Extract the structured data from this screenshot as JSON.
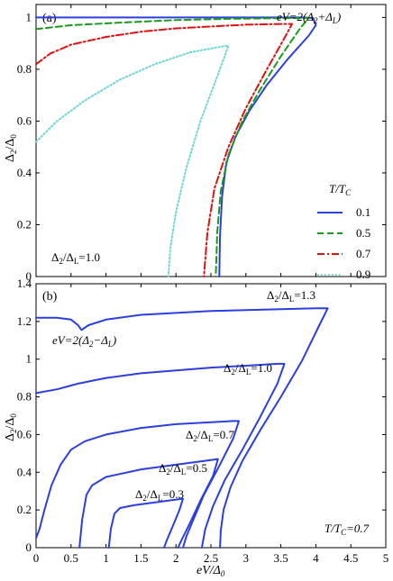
{
  "chart_data": [
    {
      "type": "line",
      "panel_label": "(a)",
      "xlim": [
        0,
        5
      ],
      "ylim": [
        0,
        1.05
      ],
      "yticks": [
        0,
        0.2,
        0.4,
        0.6,
        0.8,
        1
      ],
      "ytick_labels": [
        "0",
        "0.2",
        "0.4",
        "0.6",
        "0.8",
        "1"
      ],
      "ylabel": {
        "main": "Δ",
        "sub1": "2",
        "mid": "/Δ",
        "sub2": "0"
      },
      "legend": {
        "title": {
          "main": "T/T",
          "sub": "C"
        },
        "placement": "right",
        "entries": [
          "0.1",
          "0.5",
          "0.7",
          "0.9"
        ]
      },
      "annotations": {
        "top_right": "eV=2(Δ₂+Δₗ)",
        "bottom_left": "Δ₂/Δₗ=1.0"
      },
      "series": [
        {
          "name": "0.1",
          "color": "#2b3fe0",
          "style": "solid",
          "x": [
            0.0,
            1.0,
            2.0,
            3.0,
            3.8,
            3.96,
            4.0,
            3.9,
            3.6,
            3.3,
            3.05,
            2.85,
            2.72,
            2.66,
            2.63,
            2.62
          ],
          "y": [
            1.0,
            1.0,
            1.0,
            1.0,
            1.0,
            0.998,
            0.97,
            0.93,
            0.84,
            0.74,
            0.64,
            0.54,
            0.44,
            0.31,
            0.16,
            0.0
          ]
        },
        {
          "name": "0.5",
          "color": "#1a9a1a",
          "style": "dashed",
          "x": [
            0.0,
            0.5,
            1.2,
            2.0,
            2.8,
            3.5,
            3.9,
            3.78,
            3.5,
            3.2,
            2.95,
            2.75,
            2.64,
            2.59,
            2.57
          ],
          "y": [
            0.955,
            0.97,
            0.98,
            0.99,
            0.995,
            0.997,
            0.998,
            0.96,
            0.85,
            0.72,
            0.6,
            0.47,
            0.33,
            0.17,
            0.0
          ]
        },
        {
          "name": "0.7",
          "color": "#e01010",
          "style": "dashdot",
          "x": [
            0.0,
            0.2,
            0.5,
            1.0,
            1.5,
            2.0,
            2.5,
            3.0,
            3.5,
            3.66,
            3.55,
            3.3,
            3.0,
            2.75,
            2.55,
            2.45,
            2.4
          ],
          "y": [
            0.82,
            0.86,
            0.895,
            0.925,
            0.945,
            0.958,
            0.965,
            0.972,
            0.975,
            0.975,
            0.92,
            0.8,
            0.65,
            0.5,
            0.34,
            0.17,
            0.0
          ]
        },
        {
          "name": "0.9",
          "color": "#6fd6d2",
          "style": "dotted",
          "x": [
            0.0,
            0.3,
            0.7,
            1.2,
            1.7,
            2.2,
            2.7,
            2.75,
            2.6,
            2.35,
            2.15,
            2.0,
            1.92,
            1.89
          ],
          "y": [
            0.52,
            0.6,
            0.68,
            0.76,
            0.82,
            0.865,
            0.89,
            0.89,
            0.78,
            0.6,
            0.42,
            0.25,
            0.11,
            0.0
          ]
        }
      ]
    },
    {
      "type": "line",
      "panel_label": "(b)",
      "xlim": [
        0,
        5
      ],
      "ylim": [
        0,
        1.4
      ],
      "xticks": [
        0,
        0.5,
        1,
        1.5,
        2,
        2.5,
        3,
        3.5,
        4,
        4.5,
        5
      ],
      "xtick_labels": [
        "0",
        "0.5",
        "1",
        "1.5",
        "2",
        "2.5",
        "3",
        "3.5",
        "4",
        "4.5",
        "5"
      ],
      "yticks": [
        0,
        0.2,
        0.4,
        0.6,
        0.8,
        1,
        1.2,
        1.4
      ],
      "ytick_labels": [
        "0",
        "0.2",
        "0.4",
        "0.6",
        "0.8",
        "1",
        "1.2",
        "1.4"
      ],
      "xlabel": {
        "main": "eV/Δ",
        "sub": "0"
      },
      "ylabel": {
        "main": "Δ",
        "sub1": "2",
        "mid": "/Δ",
        "sub2": "0"
      },
      "annotations": {
        "left": "eV=2(Δ₂−Δₗ)",
        "bottom_right": "T/Tᴄ=0.7"
      },
      "color": "#2b3fe0",
      "series": [
        {
          "name": "Δ2/ΔL=1.3",
          "label": {
            "main": "Δ",
            "sub1": "2",
            "mid": "/Δ",
            "sub2": "L",
            "tail": "=1.3"
          },
          "x": [
            0.0,
            0.3,
            0.5,
            0.6,
            0.65,
            0.75,
            1.0,
            1.5,
            2.0,
            2.5,
            3.0,
            3.5,
            4.0,
            4.17,
            4.05,
            3.8,
            3.5,
            3.2,
            2.95,
            2.78,
            2.68,
            2.64,
            2.63
          ],
          "y": [
            1.22,
            1.22,
            1.21,
            1.18,
            1.155,
            1.18,
            1.21,
            1.235,
            1.245,
            1.255,
            1.26,
            1.265,
            1.27,
            1.27,
            1.18,
            0.99,
            0.8,
            0.62,
            0.46,
            0.32,
            0.2,
            0.09,
            0.0
          ]
        },
        {
          "name": "Δ2/ΔL=1.0",
          "label": {
            "main": "Δ",
            "sub1": "2",
            "mid": "/Δ",
            "sub2": "L",
            "tail": "=1.0"
          },
          "x": [
            0.0,
            0.3,
            0.6,
            1.0,
            1.5,
            2.0,
            2.5,
            3.0,
            3.45,
            3.55,
            3.45,
            3.2,
            2.95,
            2.7,
            2.53,
            2.42,
            2.37
          ],
          "y": [
            0.82,
            0.84,
            0.87,
            0.9,
            0.925,
            0.94,
            0.955,
            0.965,
            0.975,
            0.975,
            0.87,
            0.69,
            0.52,
            0.36,
            0.22,
            0.1,
            0.0
          ]
        },
        {
          "name": "Δ2/ΔL=0.7",
          "label": {
            "main": "Δ",
            "sub1": "2",
            "mid": "/Δ",
            "sub2": "L",
            "tail": "=0.7"
          },
          "x": [
            0.0,
            0.05,
            0.12,
            0.22,
            0.35,
            0.5,
            0.7,
            1.0,
            1.5,
            2.0,
            2.5,
            2.82,
            2.9,
            2.82,
            2.6,
            2.4,
            2.25,
            2.15,
            2.1
          ],
          "y": [
            0.05,
            0.1,
            0.2,
            0.33,
            0.44,
            0.52,
            0.565,
            0.6,
            0.635,
            0.655,
            0.665,
            0.672,
            0.672,
            0.58,
            0.42,
            0.28,
            0.15,
            0.06,
            0.0
          ]
        },
        {
          "name": "Δ2/ΔL=0.5",
          "label": {
            "main": "Δ",
            "sub1": "2",
            "mid": "/Δ",
            "sub2": "L",
            "tail": "=0.5"
          },
          "x": [
            0.62,
            0.66,
            0.72,
            0.8,
            1.0,
            1.5,
            2.0,
            2.4,
            2.6,
            2.53,
            2.35,
            2.2,
            2.08,
            2.03
          ],
          "y": [
            0.0,
            0.15,
            0.28,
            0.33,
            0.375,
            0.415,
            0.44,
            0.46,
            0.47,
            0.38,
            0.25,
            0.13,
            0.04,
            0.0
          ]
        },
        {
          "name": "Δ2/ΔL=0.3",
          "label": {
            "main": "Δ",
            "sub1": "2",
            "mid": "/Δ",
            "sub2": "L",
            "tail": "=0.3"
          },
          "x": [
            1.04,
            1.07,
            1.12,
            1.2,
            1.4,
            1.7,
            2.0,
            2.1,
            2.05,
            1.95,
            1.87,
            1.83
          ],
          "y": [
            0.0,
            0.1,
            0.18,
            0.21,
            0.225,
            0.24,
            0.255,
            0.26,
            0.2,
            0.11,
            0.04,
            0.0
          ]
        }
      ]
    }
  ]
}
